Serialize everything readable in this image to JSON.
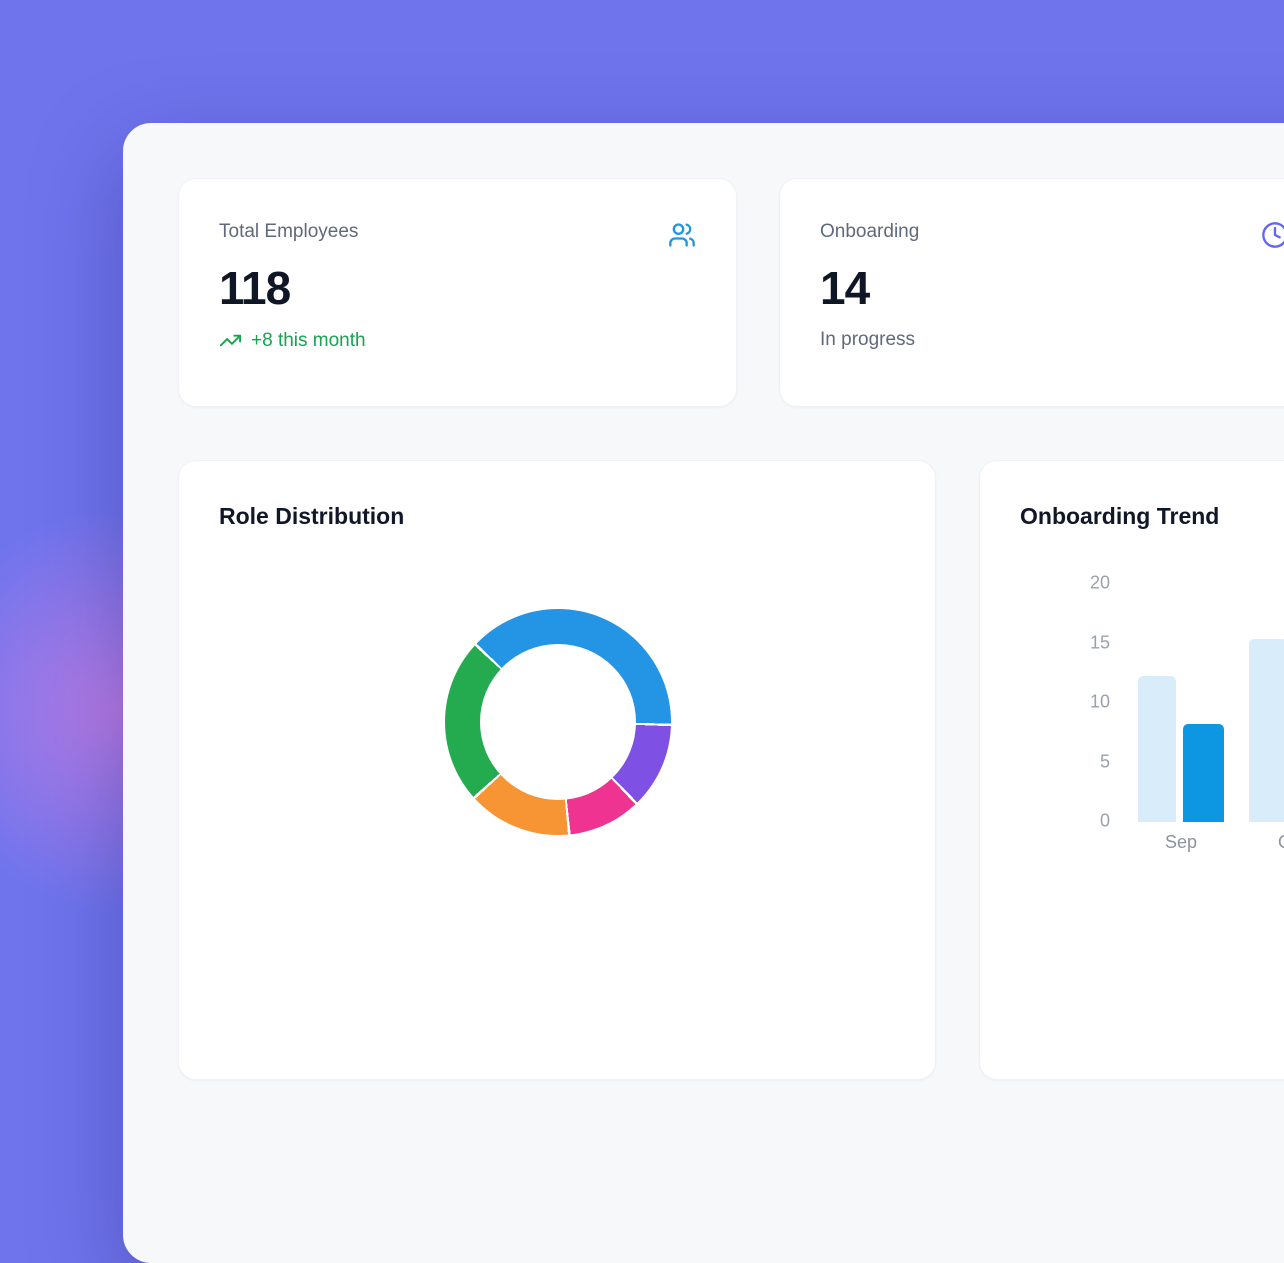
{
  "colors": {
    "background_purple": "#6f74ed",
    "panel_background": "#f7f8fa",
    "card_background": "#ffffff",
    "accent_blue": "#1e96e3",
    "accent_indigo": "#6366f1",
    "positive_green": "#18a34e",
    "text_primary": "#0f1626",
    "text_secondary": "#60697b"
  },
  "stats": [
    {
      "label": "Total Employees",
      "value": "118",
      "sub": "+8 this month",
      "icon": "users-icon",
      "icon_color": "#1e96e3",
      "sub_color": "#18a34e"
    },
    {
      "label": "Onboarding",
      "value": "14",
      "sub": "In progress",
      "icon": "clock-icon",
      "icon_color": "#6366f1"
    }
  ],
  "chart_data": [
    {
      "type": "donut",
      "title": "Role Distribution",
      "start_angle_deg": -47.5,
      "segments": [
        {
          "name": "segment-1",
          "color": "#2395e4",
          "percent": 38.4
        },
        {
          "name": "segment-2",
          "color": "#7e50e3",
          "percent": 12.4
        },
        {
          "name": "segment-3",
          "color": "#ee3390",
          "percent": 10.6
        },
        {
          "name": "segment-4",
          "color": "#f79433",
          "percent": 14.9
        },
        {
          "name": "segment-5",
          "color": "#25ab4f",
          "percent": 23.7
        }
      ]
    },
    {
      "type": "bar",
      "title": "Onboarding Trend",
      "categories": [
        "Sep",
        "Oct"
      ],
      "series": [
        {
          "name": "light",
          "color": "#d9ecf9",
          "values": [
            12,
            15
          ]
        },
        {
          "name": "dark",
          "color": "#0d97e3",
          "values": [
            8,
            null
          ]
        }
      ],
      "y_ticks": [
        0,
        5,
        10,
        15,
        20
      ],
      "ylim": [
        0,
        20
      ],
      "grid": false,
      "legend": false
    }
  ]
}
